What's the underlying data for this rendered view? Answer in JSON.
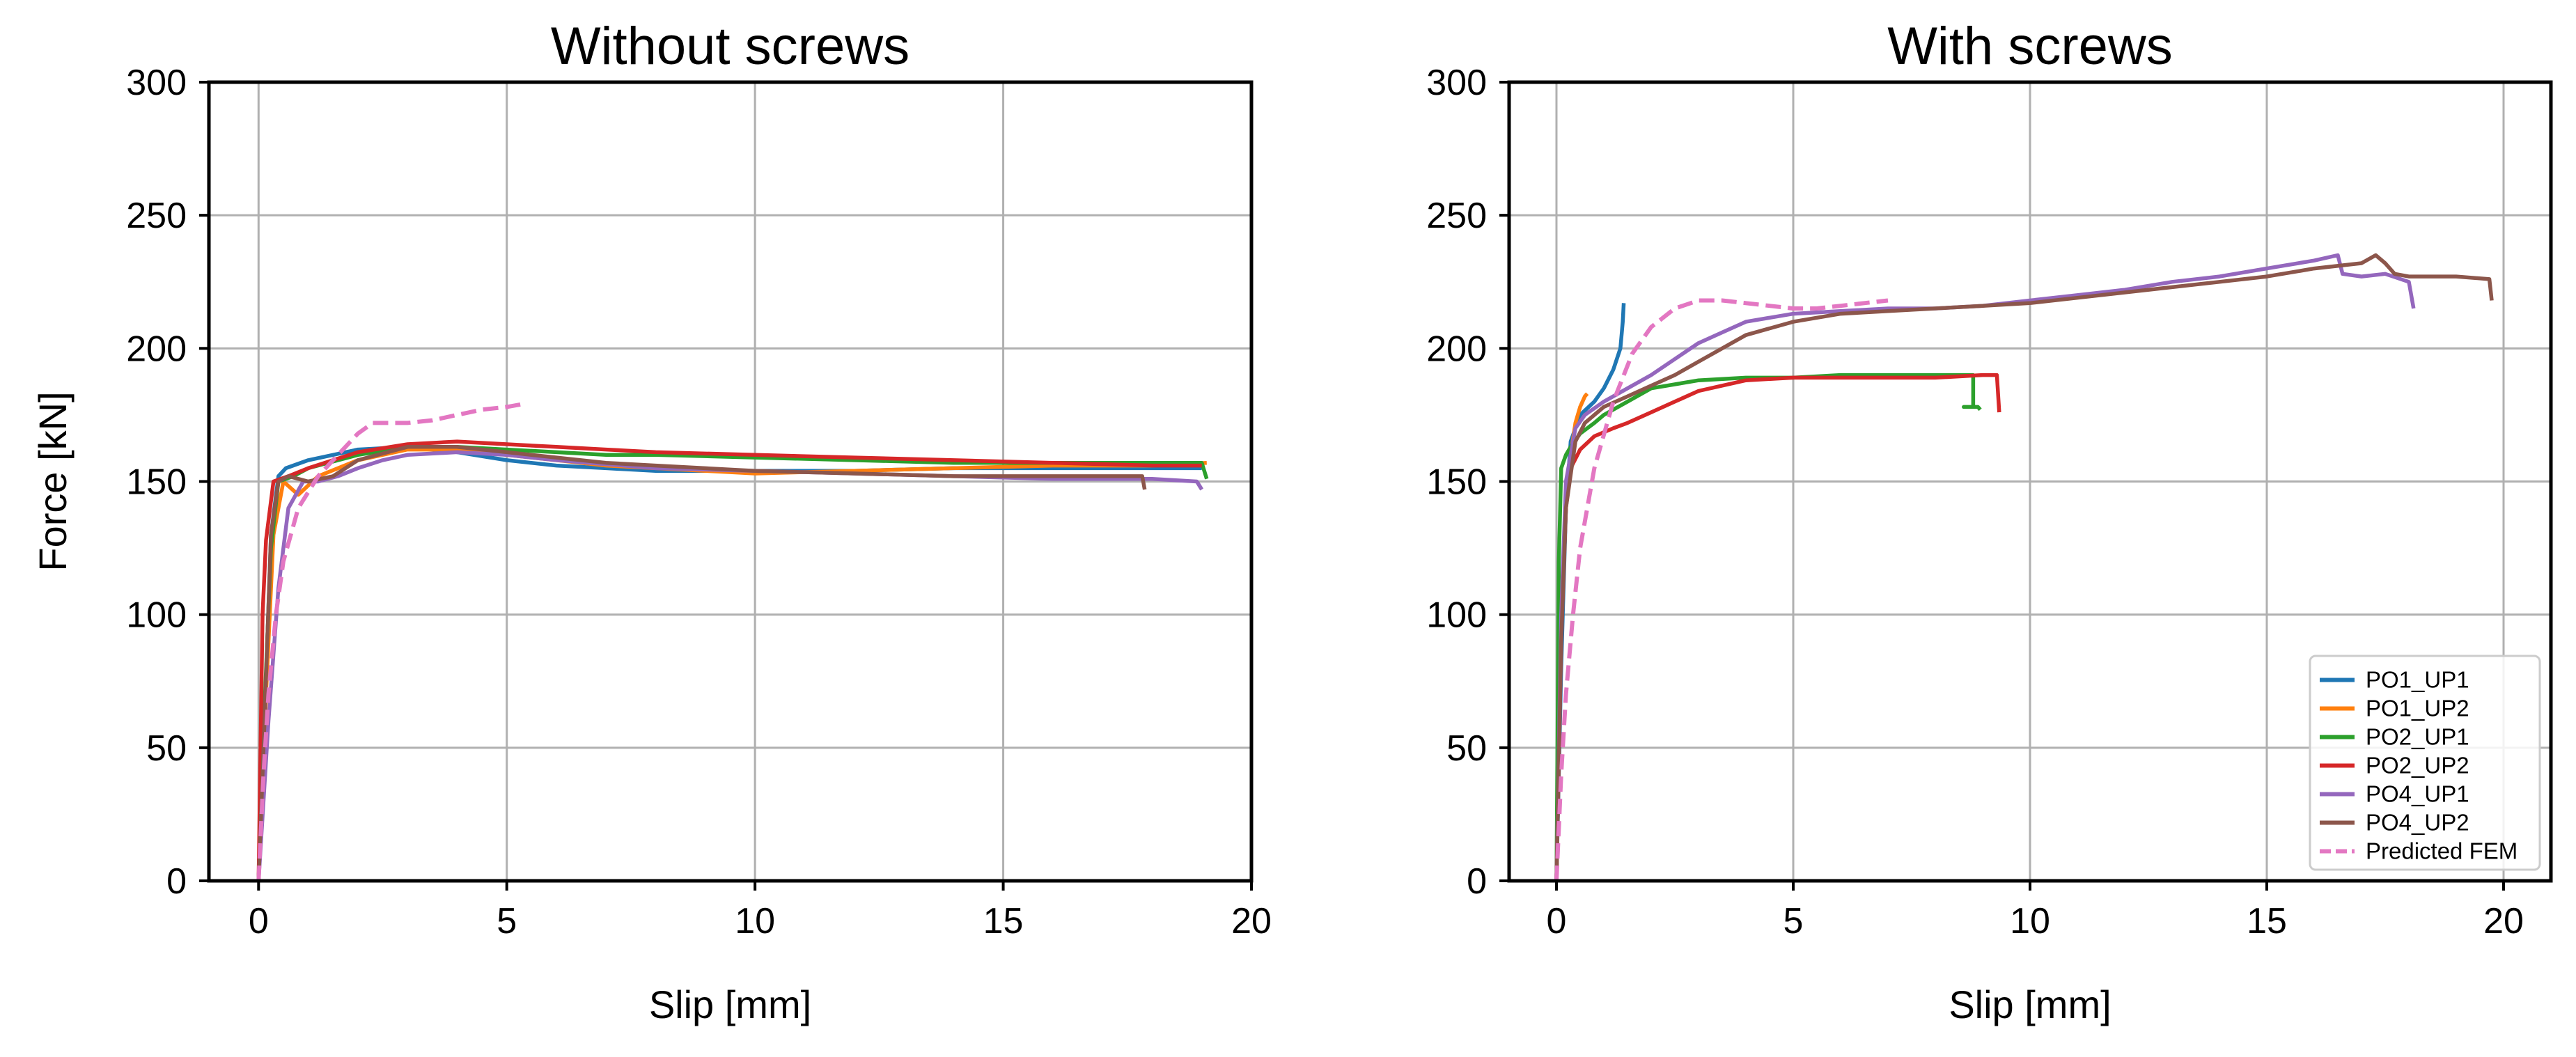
{
  "chart_data": [
    {
      "type": "line",
      "title": "Without screws",
      "xlabel": "Slip [mm]",
      "ylabel": "Force [kN]",
      "xlim": [
        -1,
        20
      ],
      "ylim": [
        0,
        300
      ],
      "xticks": [
        0,
        5,
        10,
        15,
        20
      ],
      "yticks": [
        0,
        50,
        100,
        150,
        200,
        250,
        300
      ],
      "grid": true,
      "legend": null,
      "series": [
        {
          "name": "PO1_UP1",
          "color": "#1f77b4",
          "dashed": false,
          "x": [
            0,
            0.12,
            0.25,
            0.4,
            0.55,
            1.0,
            1.5,
            2.0,
            3.0,
            4.0,
            5.0,
            6.0,
            7.0,
            8.0,
            9.0,
            10.0,
            12.0,
            14.0,
            16.0,
            18.0,
            19.0
          ],
          "y": [
            0,
            60,
            130,
            152,
            155,
            158,
            160,
            162,
            163,
            161,
            158,
            156,
            155,
            154,
            154,
            154,
            154,
            155,
            155,
            155,
            155
          ]
        },
        {
          "name": "PO1_UP2",
          "color": "#ff7f0e",
          "dashed": false,
          "x": [
            0,
            0.15,
            0.3,
            0.5,
            0.8,
            1.2,
            2.0,
            3.0,
            4.0,
            5.0,
            6.0,
            7.0,
            8.0,
            9.0,
            10.0,
            12.0,
            14.0,
            16.0,
            18.0,
            19.1
          ],
          "y": [
            0,
            70,
            130,
            150,
            145,
            152,
            158,
            162,
            162,
            160,
            158,
            156,
            155,
            154,
            153,
            154,
            155,
            156,
            156,
            157
          ]
        },
        {
          "name": "PO2_UP1",
          "color": "#2ca02c",
          "dashed": false,
          "x": [
            0,
            0.12,
            0.25,
            0.4,
            0.7,
            1.0,
            2.0,
            3.0,
            4.0,
            5.0,
            6.0,
            7.0,
            8.0,
            10.0,
            12.0,
            14.0,
            16.0,
            18.0,
            19.0,
            19.1
          ],
          "y": [
            0,
            65,
            125,
            150,
            152,
            155,
            160,
            163,
            163,
            162,
            161,
            160,
            160,
            159,
            158,
            157,
            157,
            157,
            157,
            151
          ]
        },
        {
          "name": "PO2_UP2",
          "color": "#d62728",
          "dashed": false,
          "x": [
            0,
            0.08,
            0.15,
            0.3,
            0.6,
            1.0,
            1.5,
            2.0,
            3.0,
            4.0,
            5.0,
            6.0,
            7.0,
            8.0,
            10.0,
            12.0,
            14.0,
            16.0,
            18.0,
            19.0
          ],
          "y": [
            0,
            100,
            128,
            150,
            152,
            155,
            158,
            161,
            164,
            165,
            164,
            163,
            162,
            161,
            160,
            159,
            158,
            157,
            156,
            156
          ]
        },
        {
          "name": "PO4_UP1",
          "color": "#9467bd",
          "dashed": false,
          "x": [
            0,
            0.2,
            0.4,
            0.6,
            0.9,
            1.2,
            1.6,
            2.0,
            2.5,
            3.0,
            4.0,
            5.0,
            6.0,
            8.0,
            10.0,
            12.0,
            14.0,
            16.0,
            18.0,
            18.9,
            19.0
          ],
          "y": [
            0,
            60,
            110,
            140,
            150,
            150,
            152,
            155,
            158,
            160,
            161,
            160,
            158,
            155,
            154,
            153,
            152,
            151,
            151,
            150,
            147
          ]
        },
        {
          "name": "PO4_UP2",
          "color": "#8c564b",
          "dashed": false,
          "x": [
            0,
            0.12,
            0.25,
            0.4,
            0.6,
            1.0,
            1.5,
            2.0,
            3.0,
            4.0,
            5.0,
            6.0,
            7.0,
            8.0,
            10.0,
            12.0,
            14.0,
            16.0,
            17.8,
            17.85
          ],
          "y": [
            0,
            60,
            130,
            150,
            152,
            150,
            152,
            158,
            163,
            163,
            161,
            159,
            157,
            156,
            154,
            153,
            152,
            152,
            152,
            147
          ]
        },
        {
          "name": "Predicted FEM",
          "color": "#e377c2",
          "dashed": true,
          "x": [
            0,
            0.1,
            0.2,
            0.35,
            0.5,
            0.8,
            1.2,
            1.6,
            2.0,
            2.3,
            2.7,
            3.0,
            3.5,
            4.0,
            4.5,
            5.0,
            5.3
          ],
          "y": [
            0,
            40,
            70,
            100,
            120,
            140,
            152,
            160,
            168,
            172,
            172,
            172,
            173,
            175,
            177,
            178,
            179
          ]
        }
      ]
    },
    {
      "type": "line",
      "title": "With screws",
      "xlabel": "Slip [mm]",
      "ylabel": "",
      "xlim": [
        -1,
        21
      ],
      "ylim": [
        0,
        300
      ],
      "xticks": [
        0,
        5,
        10,
        15,
        20
      ],
      "yticks": [
        0,
        50,
        100,
        150,
        200,
        250,
        300
      ],
      "grid": true,
      "legend": "lower right",
      "series": [
        {
          "name": "PO1_UP1",
          "color": "#1f77b4",
          "dashed": false,
          "x": [
            0,
            0.1,
            0.2,
            0.3,
            0.5,
            0.8,
            1.0,
            1.2,
            1.35,
            1.4,
            1.42
          ],
          "y": [
            0,
            80,
            140,
            165,
            175,
            180,
            185,
            192,
            200,
            210,
            217
          ]
        },
        {
          "name": "PO1_UP2",
          "color": "#ff7f0e",
          "dashed": false,
          "x": [
            0,
            0.1,
            0.2,
            0.3,
            0.4,
            0.5,
            0.6,
            0.65
          ],
          "y": [
            0,
            100,
            140,
            160,
            172,
            178,
            182,
            183
          ]
        },
        {
          "name": "PO2_UP1",
          "color": "#2ca02c",
          "dashed": false,
          "x": [
            0,
            0.05,
            0.1,
            0.2,
            0.3,
            0.5,
            0.8,
            1.0,
            1.5,
            2.0,
            3.0,
            4.0,
            5.0,
            6.0,
            7.0,
            8.0,
            8.8,
            8.8,
            8.6,
            8.9,
            8.95
          ],
          "y": [
            0,
            120,
            155,
            160,
            163,
            168,
            172,
            175,
            180,
            185,
            188,
            189,
            189,
            190,
            190,
            190,
            190,
            178,
            178,
            178,
            177
          ]
        },
        {
          "name": "PO2_UP2",
          "color": "#d62728",
          "dashed": false,
          "x": [
            0,
            0.1,
            0.2,
            0.3,
            0.5,
            0.8,
            1.2,
            1.5,
            2.0,
            2.5,
            3.0,
            4.0,
            5.0,
            6.0,
            7.0,
            8.0,
            9.0,
            9.3,
            9.35
          ],
          "y": [
            0,
            90,
            140,
            155,
            162,
            167,
            170,
            172,
            176,
            180,
            184,
            188,
            189,
            189,
            189,
            189,
            190,
            190,
            176
          ]
        },
        {
          "name": "PO4_UP1",
          "color": "#9467bd",
          "dashed": false,
          "x": [
            0,
            0.1,
            0.2,
            0.4,
            0.6,
            1.0,
            1.5,
            2.0,
            2.5,
            3.0,
            3.5,
            4.0,
            5.0,
            6.0,
            7.0,
            8.0,
            9.0,
            10.0,
            11.0,
            12.0,
            13.0,
            14.0,
            15.0,
            16.0,
            16.5,
            16.6,
            17.0,
            17.5,
            18.0,
            18.1
          ],
          "y": [
            0,
            100,
            150,
            170,
            175,
            180,
            185,
            190,
            196,
            202,
            206,
            210,
            213,
            214,
            215,
            215,
            216,
            218,
            220,
            222,
            225,
            227,
            230,
            233,
            235,
            228,
            227,
            228,
            225,
            215
          ]
        },
        {
          "name": "PO4_UP2",
          "color": "#8c564b",
          "dashed": false,
          "x": [
            0,
            0.1,
            0.2,
            0.4,
            0.6,
            1.0,
            1.5,
            2.0,
            2.5,
            3.0,
            4.0,
            5.0,
            6.0,
            7.0,
            8.0,
            9.0,
            10.0,
            11.0,
            12.0,
            13.0,
            14.0,
            15.0,
            16.0,
            17.0,
            17.3,
            17.5,
            17.7,
            18.0,
            19.0,
            19.7,
            19.75
          ],
          "y": [
            0,
            90,
            140,
            165,
            172,
            178,
            182,
            186,
            190,
            195,
            205,
            210,
            213,
            214,
            215,
            216,
            217,
            219,
            221,
            223,
            225,
            227,
            230,
            232,
            235,
            232,
            228,
            227,
            227,
            226,
            218
          ]
        },
        {
          "name": "Predicted FEM",
          "color": "#e377c2",
          "dashed": true,
          "x": [
            0,
            0.1,
            0.2,
            0.35,
            0.5,
            0.8,
            1.2,
            1.6,
            2.0,
            2.5,
            3.0,
            3.5,
            4.0,
            4.5,
            5.0,
            5.5,
            6.0,
            6.5,
            7.0
          ],
          "y": [
            0,
            40,
            70,
            100,
            125,
            155,
            180,
            198,
            208,
            215,
            218,
            218,
            217,
            216,
            215,
            215,
            216,
            217,
            218
          ]
        }
      ]
    }
  ]
}
